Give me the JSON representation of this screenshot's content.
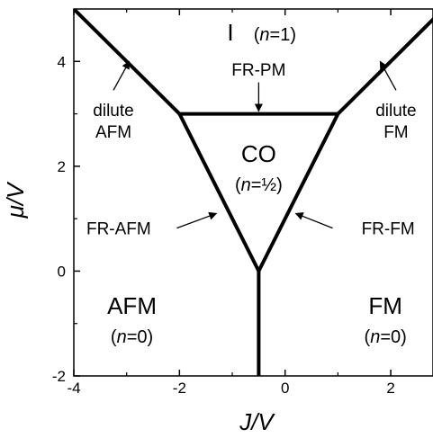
{
  "chart_data": {
    "type": "phase-diagram",
    "xlabel": "J/V",
    "ylabel": "μ/V",
    "xlim": [
      -4,
      2.8
    ],
    "ylim": [
      -2,
      5
    ],
    "xticks": [
      -4,
      -2,
      0,
      2
    ],
    "yticks": [
      -2,
      0,
      2,
      4
    ],
    "xtick_labels": [
      "-4",
      "-2",
      "0",
      "2"
    ],
    "ytick_labels": [
      "-2",
      "0",
      "2",
      "4"
    ],
    "boundaries": [
      {
        "name": "phase-boundary-vertical",
        "points": [
          [
            -0.5,
            -2
          ],
          [
            -0.5,
            0
          ]
        ]
      },
      {
        "name": "phase-boundary-left-inner",
        "points": [
          [
            -0.5,
            0
          ],
          [
            -2,
            3
          ]
        ]
      },
      {
        "name": "phase-boundary-right-inner",
        "points": [
          [
            -0.5,
            0
          ],
          [
            1,
            3
          ]
        ]
      },
      {
        "name": "phase-boundary-top-horizontal",
        "points": [
          [
            -2,
            3
          ],
          [
            1,
            3
          ]
        ]
      },
      {
        "name": "phase-boundary-left-outer",
        "points": [
          [
            -2,
            3
          ],
          [
            -4,
            5
          ]
        ]
      },
      {
        "name": "phase-boundary-right-outer",
        "points": [
          [
            1,
            3
          ],
          [
            3,
            5
          ]
        ]
      }
    ],
    "regions": [
      {
        "name": "insulator",
        "label": "I",
        "sub": "(n=1)",
        "x": -0.5,
        "y": 4.55
      },
      {
        "name": "charge-order",
        "label": "CO",
        "sub": "(n=½)",
        "x": -0.5,
        "y": 1.95
      },
      {
        "name": "afm",
        "label": "AFM",
        "sub": "(n=0)",
        "x": -2.9,
        "y": -0.95
      },
      {
        "name": "fm",
        "label": "FM",
        "sub": "(n=0)",
        "x": 1.9,
        "y": -0.95
      }
    ],
    "annotations": [
      {
        "name": "fr-pm",
        "label": "FR-PM",
        "label_xy": [
          -0.5,
          3.85
        ],
        "arrow_from": [
          -0.5,
          3.6
        ],
        "arrow_to": [
          -0.5,
          3.05
        ]
      },
      {
        "name": "dilute-afm",
        "label_lines": [
          "dilute",
          "AFM"
        ],
        "label_xy": [
          -3.25,
          2.75
        ],
        "arrow_from": [
          -3.25,
          3.45
        ],
        "arrow_to": [
          -2.95,
          4.0
        ]
      },
      {
        "name": "dilute-fm",
        "label_lines": [
          "dilute",
          "FM"
        ],
        "label_xy": [
          2.1,
          2.75
        ],
        "arrow_from": [
          2.1,
          3.45
        ],
        "arrow_to": [
          1.8,
          4.0
        ]
      },
      {
        "name": "fr-afm",
        "label": "FR-AFM",
        "label_xy": [
          -3.15,
          0.82
        ],
        "arrow_from": [
          -2.05,
          0.82
        ],
        "arrow_to": [
          -1.3,
          1.1
        ]
      },
      {
        "name": "fr-fm",
        "label": "FR-FM",
        "label_xy": [
          1.95,
          0.82
        ],
        "arrow_from": [
          0.9,
          0.82
        ],
        "arrow_to": [
          0.2,
          1.1
        ]
      }
    ]
  }
}
